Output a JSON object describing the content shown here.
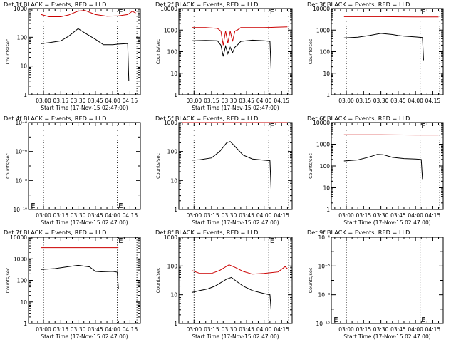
{
  "colors": {
    "events": "#000000",
    "lld": "#cc0000",
    "axis": "#000000",
    "background": "#ffffff"
  },
  "chart_data": [
    {
      "type": "line",
      "title": "Det 1f BLACK = Events, RED = LLD",
      "xlabel": "Start Time (17-Nov-15 02:47:00)",
      "ylabel": "Counts/sec",
      "x_unit": "UT",
      "x_range": [
        "02:47",
        "04:24"
      ],
      "xticks": [
        "03:00",
        "03:15",
        "03:30",
        "03:45",
        "04:00",
        "04:15"
      ],
      "scale": "log",
      "ylim": [
        1,
        1000
      ],
      "yticks": [
        "1",
        "10",
        "100",
        "1000"
      ],
      "vlines": [
        "03:00",
        "04:04",
        "04:21"
      ],
      "markers": [
        {
          "text": "E",
          "time": "04:05",
          "level": 1000
        }
      ],
      "series": [
        {
          "color": "lld",
          "x": [
            "02:58",
            "03:05",
            "03:15",
            "03:22",
            "03:30",
            "03:36",
            "03:45",
            "03:55",
            "04:05",
            "04:13",
            "04:17",
            "04:20"
          ],
          "values": [
            620,
            520,
            520,
            600,
            820,
            860,
            620,
            540,
            560,
            620,
            800,
            700
          ]
        },
        {
          "color": "events",
          "x": [
            "02:58",
            "03:05",
            "03:15",
            "03:22",
            "03:30",
            "03:36",
            "03:45",
            "03:52",
            "04:00",
            "04:05",
            "04:12",
            "04:13",
            "04:14"
          ],
          "values": [
            60,
            65,
            75,
            110,
            200,
            140,
            85,
            55,
            55,
            58,
            60,
            60,
            3
          ]
        }
      ]
    },
    {
      "type": "line",
      "title": "Det 2f BLACK = Events, RED = LLD",
      "xlabel": "Start Time (17-Nov-15 02:47:00)",
      "ylabel": "Counts/sec",
      "x_unit": "UT",
      "x_range": [
        "02:47",
        "04:24"
      ],
      "xticks": [
        "03:00",
        "03:15",
        "03:30",
        "03:45",
        "04:00",
        "04:15"
      ],
      "scale": "log",
      "ylim": [
        1,
        10000
      ],
      "yticks": [
        "1",
        "10",
        "100",
        "1000",
        "10000"
      ],
      "vlines": [
        "03:00",
        "04:04",
        "04:21"
      ],
      "markers": [
        {
          "text": "E",
          "time": "04:05",
          "level": 10000
        }
      ],
      "series": [
        {
          "color": "lld",
          "x": [
            "02:58",
            "03:10",
            "03:20",
            "03:23",
            "03:25",
            "03:27",
            "03:29",
            "03:31",
            "03:33",
            "03:35",
            "03:37",
            "03:40",
            "03:50",
            "04:00",
            "04:10",
            "04:20"
          ],
          "values": [
            1300,
            1300,
            1200,
            900,
            200,
            900,
            250,
            900,
            300,
            900,
            1000,
            1300,
            1300,
            1300,
            1350,
            1400
          ]
        },
        {
          "color": "events",
          "x": [
            "02:58",
            "03:10",
            "03:20",
            "03:23",
            "03:25",
            "03:27",
            "03:29",
            "03:31",
            "03:33",
            "03:35",
            "03:37",
            "03:40",
            "03:50",
            "04:00",
            "04:05",
            "04:06"
          ],
          "values": [
            320,
            330,
            320,
            200,
            60,
            180,
            80,
            160,
            90,
            160,
            200,
            300,
            340,
            320,
            300,
            15
          ]
        }
      ]
    },
    {
      "type": "line",
      "title": "Det 3f BLACK = Events, RED = LLD",
      "xlabel": "",
      "ylabel": "Counts/sec",
      "x_unit": "UT",
      "x_range": [
        "02:47",
        "04:24"
      ],
      "xticks": [
        "03:00",
        "03:15",
        "03:30",
        "03:45",
        "04:00",
        "04:15"
      ],
      "scale": "log",
      "ylim": [
        1,
        10000
      ],
      "yticks": [
        "1",
        "10",
        "100",
        "1000",
        "10000"
      ],
      "vlines": [
        "03:00",
        "04:04",
        "04:21"
      ],
      "markers": [
        {
          "text": "E",
          "time": "04:05",
          "level": 10000
        }
      ],
      "series": [
        {
          "color": "lld",
          "x": [
            "02:58",
            "03:30",
            "04:00",
            "04:20"
          ],
          "values": [
            4200,
            4200,
            4100,
            4100
          ]
        },
        {
          "color": "events",
          "x": [
            "02:58",
            "03:10",
            "03:20",
            "03:30",
            "03:40",
            "03:45",
            "03:50",
            "04:00",
            "04:06",
            "04:07"
          ],
          "values": [
            430,
            470,
            560,
            700,
            620,
            560,
            520,
            480,
            450,
            40
          ]
        }
      ]
    },
    {
      "type": "line",
      "title": "Det 4f BLACK = Events, RED = LLD",
      "xlabel": "Start Time (17-Nov-15 02:47:00)",
      "ylabel": "Counts/sec",
      "x_unit": "UT",
      "x_range": [
        "02:47",
        "04:24"
      ],
      "xticks": [
        "03:00",
        "03:15",
        "03:30",
        "03:45",
        "04:00",
        "04:15"
      ],
      "scale": "log",
      "ylim": [
        1e-10,
        0.0001
      ],
      "yticks": [
        "10⁻¹⁰",
        "10⁻⁸",
        "10⁻⁶",
        "10⁻⁴"
      ],
      "vlines": [
        "03:00",
        "04:04"
      ],
      "markers": [
        {
          "text": "E",
          "time": "02:49",
          "level": 3e-10
        },
        {
          "text": "E",
          "time": "04:05",
          "level": 3e-10
        }
      ],
      "series": []
    },
    {
      "type": "line",
      "title": "Det 5f BLACK = Events, RED = LLD",
      "xlabel": "Start Time (17-Nov-15 02:47:00)",
      "ylabel": "Counts/sec",
      "x_unit": "UT",
      "x_range": [
        "02:47",
        "04:24"
      ],
      "xticks": [
        "03:00",
        "03:15",
        "03:30",
        "03:45",
        "04:00",
        "04:15"
      ],
      "scale": "log",
      "ylim": [
        1,
        1000
      ],
      "yticks": [
        "1",
        "10",
        "100",
        "1000"
      ],
      "vlines": [
        "03:00",
        "04:04",
        "04:21"
      ],
      "markers": [
        {
          "text": "E",
          "time": "04:05",
          "level": 1000
        }
      ],
      "series": [
        {
          "color": "lld",
          "x": [
            "02:50",
            "04:20"
          ],
          "values": [
            1000,
            1000
          ]
        },
        {
          "color": "events",
          "x": [
            "02:58",
            "03:05",
            "03:15",
            "03:22",
            "03:28",
            "03:31",
            "03:35",
            "03:42",
            "03:50",
            "04:00",
            "04:05",
            "04:06"
          ],
          "values": [
            50,
            52,
            60,
            100,
            200,
            220,
            150,
            75,
            55,
            50,
            48,
            5
          ]
        }
      ]
    },
    {
      "type": "line",
      "title": "Det 6f BLACK = Events, RED = LLD",
      "xlabel": "Start Time (17-Nov-15 02:47:00)",
      "ylabel": "Counts/sec",
      "x_unit": "UT",
      "x_range": [
        "02:47",
        "04:24"
      ],
      "xticks": [
        "03:00",
        "03:15",
        "03:30",
        "03:45",
        "04:00",
        "04:15"
      ],
      "scale": "log",
      "ylim": [
        1,
        10000
      ],
      "yticks": [
        "1",
        "10",
        "100",
        "1000",
        "10000"
      ],
      "vlines": [
        "03:00",
        "04:04",
        "04:21"
      ],
      "markers": [
        {
          "text": "E",
          "time": "04:05",
          "level": 10000
        }
      ],
      "series": [
        {
          "color": "lld",
          "x": [
            "02:58",
            "03:30",
            "04:00",
            "04:20"
          ],
          "values": [
            2700,
            2700,
            2650,
            2650
          ]
        },
        {
          "color": "events",
          "x": [
            "02:58",
            "03:10",
            "03:20",
            "03:27",
            "03:32",
            "03:40",
            "03:50",
            "04:00",
            "04:05",
            "04:06"
          ],
          "values": [
            170,
            190,
            260,
            340,
            330,
            250,
            220,
            210,
            200,
            25
          ]
        }
      ]
    },
    {
      "type": "line",
      "title": "Det 7f BLACK = Events, RED = LLD",
      "xlabel": "Start Time (17-Nov-15 02:47:00)",
      "ylabel": "Counts/sec",
      "x_unit": "UT",
      "x_range": [
        "02:47",
        "04:24"
      ],
      "xticks": [
        "03:00",
        "03:15",
        "03:30",
        "03:45",
        "04:00",
        "04:15"
      ],
      "scale": "log",
      "ylim": [
        1,
        10000
      ],
      "yticks": [
        "1",
        "10",
        "100",
        "1000",
        "10000"
      ],
      "vlines": [
        "03:00",
        "04:04",
        "04:21"
      ],
      "markers": [
        {
          "text": "E",
          "time": "04:05",
          "level": 10000
        }
      ],
      "series": [
        {
          "color": "lld",
          "x": [
            "02:58",
            "03:30",
            "04:00",
            "04:05"
          ],
          "values": [
            3300,
            3300,
            3300,
            3300
          ]
        },
        {
          "color": "events",
          "x": [
            "02:58",
            "03:10",
            "03:20",
            "03:30",
            "03:40",
            "03:45",
            "03:50",
            "04:00",
            "04:04",
            "04:05"
          ],
          "values": [
            320,
            350,
            420,
            500,
            420,
            260,
            250,
            260,
            240,
            40
          ]
        }
      ]
    },
    {
      "type": "line",
      "title": "Det 8f BLACK = Events, RED = LLD",
      "xlabel": "Start Time (17-Nov-15 02:47:00)",
      "ylabel": "Counts/sec",
      "x_unit": "UT",
      "x_range": [
        "02:47",
        "04:24"
      ],
      "xticks": [
        "03:00",
        "03:15",
        "03:30",
        "03:45",
        "04:00",
        "04:15"
      ],
      "scale": "log",
      "ylim": [
        1,
        1000
      ],
      "yticks": [
        "1",
        "10",
        "100",
        "1000"
      ],
      "vlines": [
        "03:00",
        "04:04",
        "04:21"
      ],
      "markers": [
        {
          "text": "E",
          "time": "04:05",
          "level": 1000
        }
      ],
      "series": [
        {
          "color": "lld",
          "x": [
            "02:58",
            "03:05",
            "03:15",
            "03:22",
            "03:30",
            "03:35",
            "03:42",
            "03:50",
            "04:00",
            "04:05",
            "04:12",
            "04:18",
            "04:20"
          ],
          "values": [
            70,
            55,
            55,
            70,
            110,
            90,
            65,
            52,
            55,
            58,
            62,
            95,
            80
          ]
        },
        {
          "color": "events",
          "x": [
            "02:58",
            "03:05",
            "03:12",
            "03:18",
            "03:22",
            "03:28",
            "03:32",
            "03:36",
            "03:42",
            "03:50",
            "04:00",
            "04:05",
            "04:06"
          ],
          "values": [
            12,
            14,
            16,
            20,
            25,
            35,
            40,
            30,
            20,
            14,
            11,
            10,
            3
          ]
        }
      ]
    },
    {
      "type": "line",
      "title": "Det 9f BLACK = Events, RED = LLD",
      "xlabel": "Start Time (17-Nov-15 02:47:00)",
      "ylabel": "Counts/sec",
      "x_unit": "UT",
      "x_range": [
        "02:47",
        "04:24"
      ],
      "xticks": [
        "03:00",
        "03:15",
        "03:30",
        "03:45",
        "04:00",
        "04:15"
      ],
      "scale": "log",
      "ylim": [
        1e-10,
        0.0001
      ],
      "yticks": [
        "10⁻¹⁰",
        "10⁻⁸",
        "10⁻⁶",
        "10⁻⁴"
      ],
      "vlines": [
        "03:00",
        "04:04"
      ],
      "markers": [
        {
          "text": "E",
          "time": "02:49",
          "level": 3e-10
        },
        {
          "text": "E",
          "time": "04:05",
          "level": 3e-10
        }
      ],
      "series": []
    }
  ]
}
